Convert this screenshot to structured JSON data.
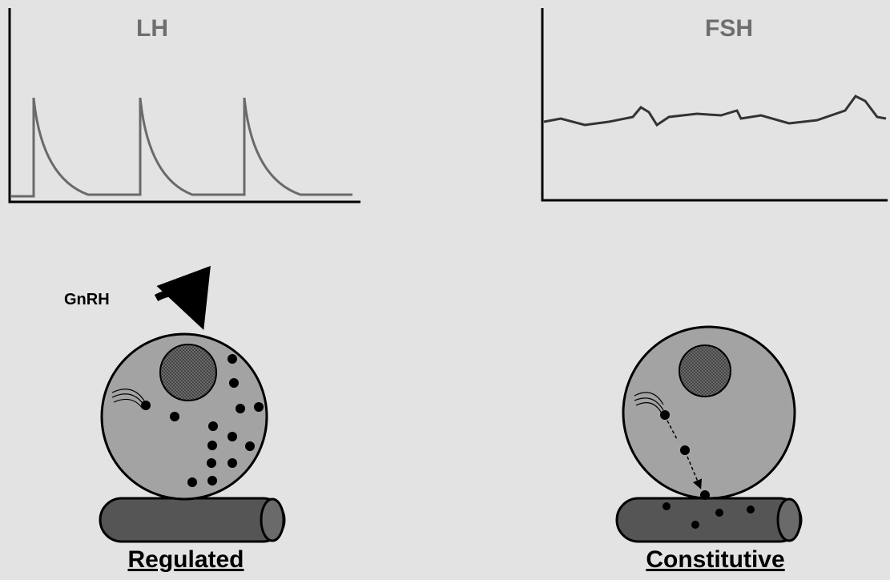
{
  "panels": [
    {
      "title": "LH"
    },
    {
      "title": "FSH"
    }
  ],
  "cells": [
    {
      "label": "Regulated",
      "stimulus": "GnRH"
    },
    {
      "label": "Constitutive"
    }
  ]
}
